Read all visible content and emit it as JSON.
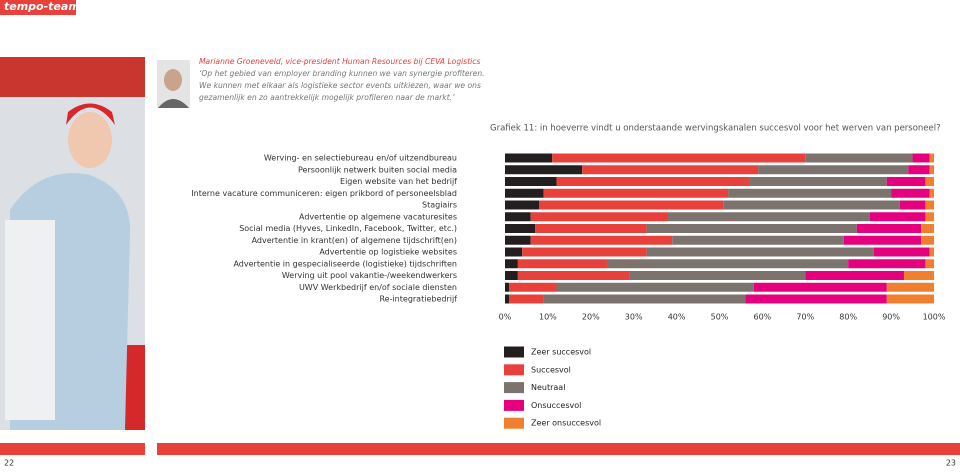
{
  "header": {
    "logo": "tempo-team"
  },
  "quote": {
    "author": "Marianne Groeneveld, vice-president Human Resources bij CEVA Logistics",
    "lines": [
      "‘Op het gebied van employer branding kunnen we van synergie profiteren.",
      "We kunnen met elkaar als logistieke sector events uitkiezen, waar we ons",
      "gezamenlijk en zo aantrekkelijk mogelijk profileren naar de markt.’"
    ]
  },
  "chart_data": {
    "type": "stacked-barh",
    "title": "Grafiek 11: in hoeverre vindt u onderstaande wervingskanalen succesvol voor het werven van personeel?",
    "categories": [
      "Werving- en selectiebureau en/of uitzendbureau",
      "Persoonlijk netwerk buiten social media",
      "Eigen website van het bedrijf",
      "Interne vacature communiceren: eigen prikbord of personeelsblad",
      "Stagiairs",
      "Advertentie op algemene vacaturesites",
      "Social media (Hyves, LinkedIn, Facebook, Twitter, etc.)",
      "Advertentie in krant(en) of algemene tijdschrift(en)",
      "Advertentie op logistieke websites",
      "Advertentie in gespecialiseerde (logistieke) tijdschriften",
      "Werving uit pool vakantie-/weekendwerkers",
      "UWV Werkbedrijf en/of sociale diensten",
      "Re-integratiebedrijf"
    ],
    "series": [
      {
        "name": "Zeer succesvol",
        "color": "#231f20",
        "values": [
          11,
          18,
          12,
          9,
          8,
          6,
          7,
          6,
          4,
          3,
          3,
          1,
          1
        ]
      },
      {
        "name": "Succesvol",
        "color": "#e8413c",
        "values": [
          59,
          41,
          45,
          43,
          43,
          32,
          26,
          33,
          29,
          21,
          26,
          11,
          8
        ]
      },
      {
        "name": "Neutraal",
        "color": "#7d736e",
        "values": [
          25,
          35,
          32,
          38,
          41,
          47,
          49,
          40,
          53,
          56,
          41,
          46,
          47
        ]
      },
      {
        "name": "Onsuccesvol",
        "color": "#e5007e",
        "values": [
          4,
          5,
          9,
          9,
          6,
          13,
          15,
          18,
          13,
          18,
          23,
          31,
          33
        ]
      },
      {
        "name": "Zeer onsuccesvol",
        "color": "#f08030",
        "values": [
          1,
          1,
          2,
          1,
          2,
          2,
          3,
          3,
          1,
          2,
          7,
          11,
          11
        ]
      }
    ],
    "xlim": [
      0,
      100
    ],
    "xticks": [
      {
        "value": 0,
        "label": "0%"
      },
      {
        "value": 10,
        "label": "10%"
      },
      {
        "value": 20,
        "label": "20%"
      },
      {
        "value": 30,
        "label": "30%"
      },
      {
        "value": 40,
        "label": "40%"
      },
      {
        "value": 50,
        "label": "50%"
      },
      {
        "value": 60,
        "label": "60%"
      },
      {
        "value": 70,
        "label": "70%"
      },
      {
        "value": 80,
        "label": "80%"
      },
      {
        "value": 90,
        "label": "90%"
      },
      {
        "value": 100,
        "label": "100%"
      }
    ]
  },
  "footer": {
    "page_left": "22",
    "page_right": "23"
  }
}
